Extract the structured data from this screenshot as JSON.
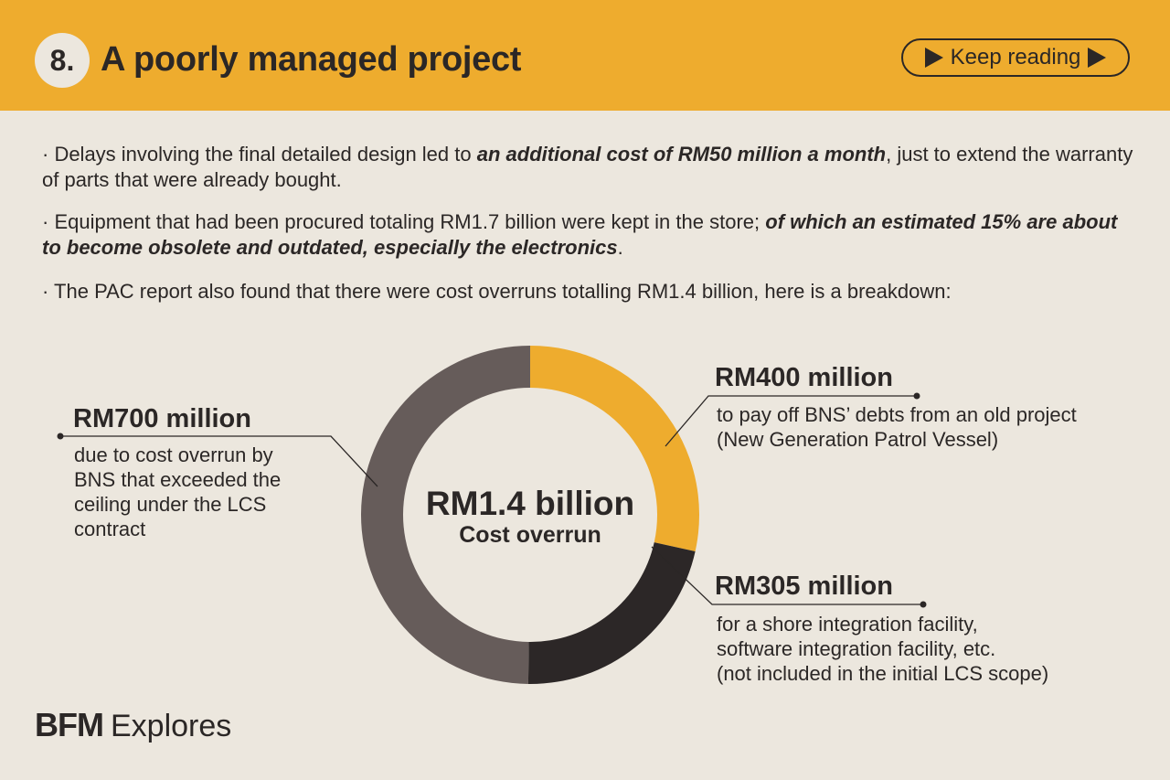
{
  "header": {
    "number": "8.",
    "title": "A poorly managed project",
    "keep_reading": "Keep reading"
  },
  "paragraphs": {
    "p1_pre": "· Delays involving the final detailed design led to ",
    "p1_em": "an additional cost of RM50 million a month",
    "p1_post": ", just to extend the warranty of parts that were already bought.",
    "p2_pre": "· Equipment that had been procured totaling RM1.7 billion were kept in the store; ",
    "p2_em": "of which an estimated 15% are about to become obsolete and outdated, especially the electronics",
    "p2_post": ".",
    "p3": "· The PAC report also found that there were cost overruns totalling RM1.4 billion, here is a breakdown:"
  },
  "chart_data": {
    "type": "pie",
    "donut": true,
    "center_total": "RM1.4 billion",
    "center_subtitle": "Cost overrun",
    "slices": [
      {
        "amount_label": "RM400 million",
        "value": 400,
        "color": "#EEAC2E",
        "description": [
          "to pay off BNS’ debts from an old project",
          "(New Generation Patrol Vessel)"
        ]
      },
      {
        "amount_label": "RM305 million",
        "value": 305,
        "color": "#2C2727",
        "description": [
          "for a shore integration facility,",
          "software integration facility, etc.",
          "(not included in the initial LCS scope)"
        ]
      },
      {
        "amount_label": "RM700 million",
        "value": 700,
        "color": "#665C5A",
        "description": [
          "due to cost overrun by",
          "BNS that exceeded the",
          "ceiling under the LCS",
          "contract"
        ]
      }
    ]
  },
  "footer": {
    "logo_bold": "BFM",
    "logo_text": "Explores"
  }
}
